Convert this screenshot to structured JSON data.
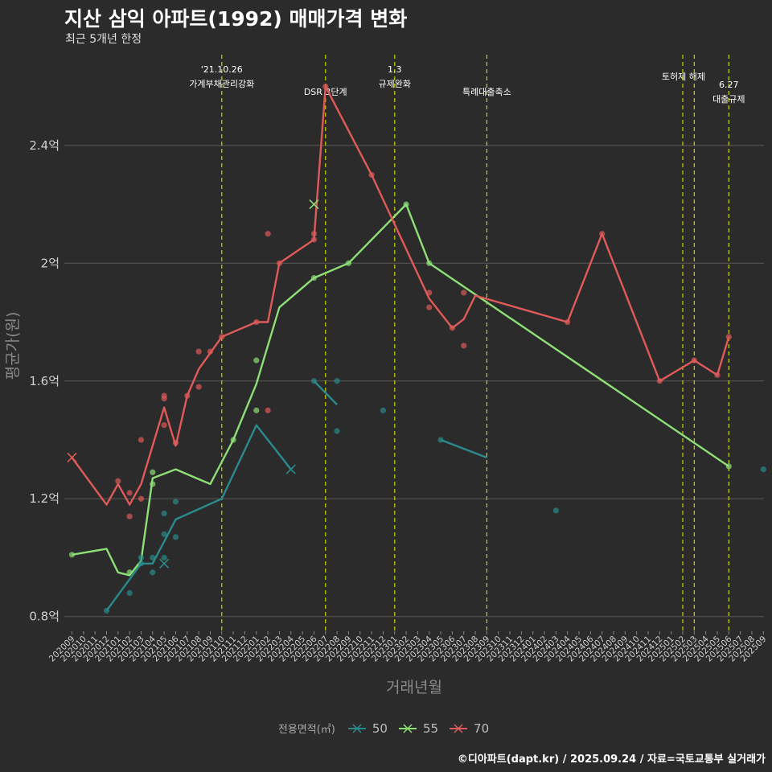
{
  "title": "지산 삼익 아파트(1992) 매매가격 변화",
  "subtitle": "최근 5개년 한정",
  "credit": "©디아파트(dapt.kr) / 2025.09.24 / 자료=국토교통부 실거래가",
  "chart_data": {
    "type": "line",
    "title": "지산 삼익 아파트(1992) 매매가격 변화",
    "xlabel": "거래년월",
    "ylabel": "평균가(원)",
    "ylim": [
      0.75,
      2.73
    ],
    "y_unit": "억",
    "yticks": [
      0.8,
      1.2,
      1.6,
      2.0,
      2.4
    ],
    "ytick_labels": [
      "0.8억",
      "1.2억",
      "1.6억",
      "2억",
      "2.4억"
    ],
    "x_start": "2020-09",
    "x_end": "2025-09",
    "legend_title": "전용면적(㎡)",
    "colors": {
      "50": "#2a8a8c",
      "55": "#8ddf76",
      "70": "#e05a5a",
      "event": "#c8d400"
    },
    "events": [
      {
        "date": "2021-10",
        "label": "'21.10.26\n가계부채관리강화"
      },
      {
        "date": "2022-07",
        "label": "DSR 3단계"
      },
      {
        "date": "2023-01",
        "label": "1.3\n규제완화"
      },
      {
        "date": "2023-09",
        "label": "특례대출축소"
      },
      {
        "date": "2025-02",
        "label": "토허제 해제"
      },
      {
        "date": "2025-03",
        "label": ""
      },
      {
        "date": "2025-06",
        "label": "6.27\n대출규제"
      }
    ],
    "series": [
      {
        "name": "50",
        "segments": [
          [
            [
              "2020-12",
              0.82
            ],
            [
              "2021-03",
              0.98
            ],
            [
              "2021-04",
              0.98
            ],
            [
              "2021-06",
              1.13
            ],
            [
              "2021-10",
              1.2
            ],
            [
              "2022-01",
              1.45
            ],
            [
              "2022-04",
              1.3
            ]
          ],
          [
            [
              "2022-06",
              1.6
            ],
            [
              "2022-08",
              1.52
            ]
          ],
          [
            [
              "2023-05",
              1.4
            ],
            [
              "2023-09",
              1.34
            ]
          ]
        ],
        "points": [
          [
            "2020-12",
            0.82
          ],
          [
            "2021-02",
            0.88
          ],
          [
            "2021-03",
            0.98
          ],
          [
            "2021-03",
            1.0
          ],
          [
            "2021-04",
            1.0
          ],
          [
            "2021-04",
            0.95
          ],
          [
            "2021-05",
            1.08
          ],
          [
            "2021-05",
            1.15
          ],
          [
            "2021-05",
            1.0
          ],
          [
            "2021-06",
            1.07
          ],
          [
            "2021-06",
            1.19
          ],
          [
            "2022-06",
            1.6
          ],
          [
            "2022-08",
            1.6
          ],
          [
            "2022-08",
            1.43
          ],
          [
            "2022-12",
            1.5
          ],
          [
            "2023-05",
            1.4
          ],
          [
            "2024-03",
            1.16
          ],
          [
            "2025-09",
            1.3
          ]
        ],
        "crosses": [
          [
            "2021-05",
            0.98
          ],
          [
            "2022-04",
            1.3
          ]
        ]
      },
      {
        "name": "55",
        "segments": [
          [
            [
              "2020-09",
              1.01
            ],
            [
              "2020-12",
              1.03
            ],
            [
              "2021-01",
              0.95
            ],
            [
              "2021-02",
              0.94
            ],
            [
              "2021-03",
              0.99
            ],
            [
              "2021-04",
              1.27
            ],
            [
              "2021-06",
              1.3
            ],
            [
              "2021-09",
              1.25
            ],
            [
              "2021-11",
              1.4
            ],
            [
              "2022-01",
              1.59
            ],
            [
              "2022-03",
              1.85
            ],
            [
              "2022-06",
              1.95
            ],
            [
              "2022-09",
              2.0
            ],
            [
              "2023-02",
              2.2
            ],
            [
              "2023-04",
              2.0
            ],
            [
              "2025-06",
              1.31
            ]
          ]
        ],
        "points": [
          [
            "2020-09",
            1.01
          ],
          [
            "2021-02",
            0.95
          ],
          [
            "2021-04",
            1.29
          ],
          [
            "2021-04",
            1.25
          ],
          [
            "2021-11",
            1.4
          ],
          [
            "2022-01",
            1.67
          ],
          [
            "2022-01",
            1.5
          ],
          [
            "2022-06",
            1.95
          ],
          [
            "2022-09",
            2.0
          ],
          [
            "2023-02",
            2.2
          ],
          [
            "2023-04",
            2.0
          ],
          [
            "2025-06",
            1.31
          ]
        ],
        "crosses": [
          [
            "2022-06",
            2.2
          ]
        ]
      },
      {
        "name": "70",
        "segments": [
          [
            [
              "2020-09",
              1.34
            ],
            [
              "2020-12",
              1.18
            ],
            [
              "2021-01",
              1.25
            ],
            [
              "2021-02",
              1.18
            ],
            [
              "2021-03",
              1.25
            ],
            [
              "2021-05",
              1.51
            ],
            [
              "2021-06",
              1.38
            ],
            [
              "2021-07",
              1.55
            ],
            [
              "2021-08",
              1.64
            ],
            [
              "2021-10",
              1.75
            ],
            [
              "2022-01",
              1.8
            ],
            [
              "2022-02",
              1.8
            ],
            [
              "2022-03",
              2.0
            ],
            [
              "2022-06",
              2.08
            ],
            [
              "2022-07",
              2.6
            ],
            [
              "2022-11",
              2.3
            ],
            [
              "2023-04",
              1.88
            ],
            [
              "2023-06",
              1.78
            ],
            [
              "2023-07",
              1.81
            ],
            [
              "2023-08",
              1.89
            ],
            [
              "2024-04",
              1.8
            ],
            [
              "2024-07",
              2.1
            ],
            [
              "2024-12",
              1.6
            ],
            [
              "2025-03",
              1.67
            ],
            [
              "2025-05",
              1.62
            ],
            [
              "2025-06",
              1.75
            ]
          ]
        ],
        "points": [
          [
            "2021-01",
            1.26
          ],
          [
            "2021-02",
            1.22
          ],
          [
            "2021-02",
            1.14
          ],
          [
            "2021-03",
            1.4
          ],
          [
            "2021-03",
            1.2
          ],
          [
            "2021-05",
            1.55
          ],
          [
            "2021-05",
            1.54
          ],
          [
            "2021-05",
            1.45
          ],
          [
            "2021-06",
            1.39
          ],
          [
            "2021-07",
            1.55
          ],
          [
            "2021-08",
            1.7
          ],
          [
            "2021-08",
            1.58
          ],
          [
            "2021-09",
            1.7
          ],
          [
            "2021-10",
            1.75
          ],
          [
            "2022-01",
            1.8
          ],
          [
            "2022-02",
            2.1
          ],
          [
            "2022-02",
            1.5
          ],
          [
            "2022-03",
            2.0
          ],
          [
            "2022-06",
            2.1
          ],
          [
            "2022-06",
            2.08
          ],
          [
            "2022-07",
            2.6
          ],
          [
            "2022-11",
            2.3
          ],
          [
            "2023-04",
            1.9
          ],
          [
            "2023-04",
            1.85
          ],
          [
            "2023-06",
            1.78
          ],
          [
            "2023-07",
            1.9
          ],
          [
            "2023-07",
            1.72
          ],
          [
            "2024-04",
            1.8
          ],
          [
            "2024-07",
            2.1
          ],
          [
            "2024-12",
            1.6
          ],
          [
            "2025-03",
            1.67
          ],
          [
            "2025-05",
            1.62
          ],
          [
            "2025-06",
            1.75
          ]
        ],
        "crosses": [
          [
            "2020-09",
            1.34
          ]
        ]
      }
    ]
  }
}
